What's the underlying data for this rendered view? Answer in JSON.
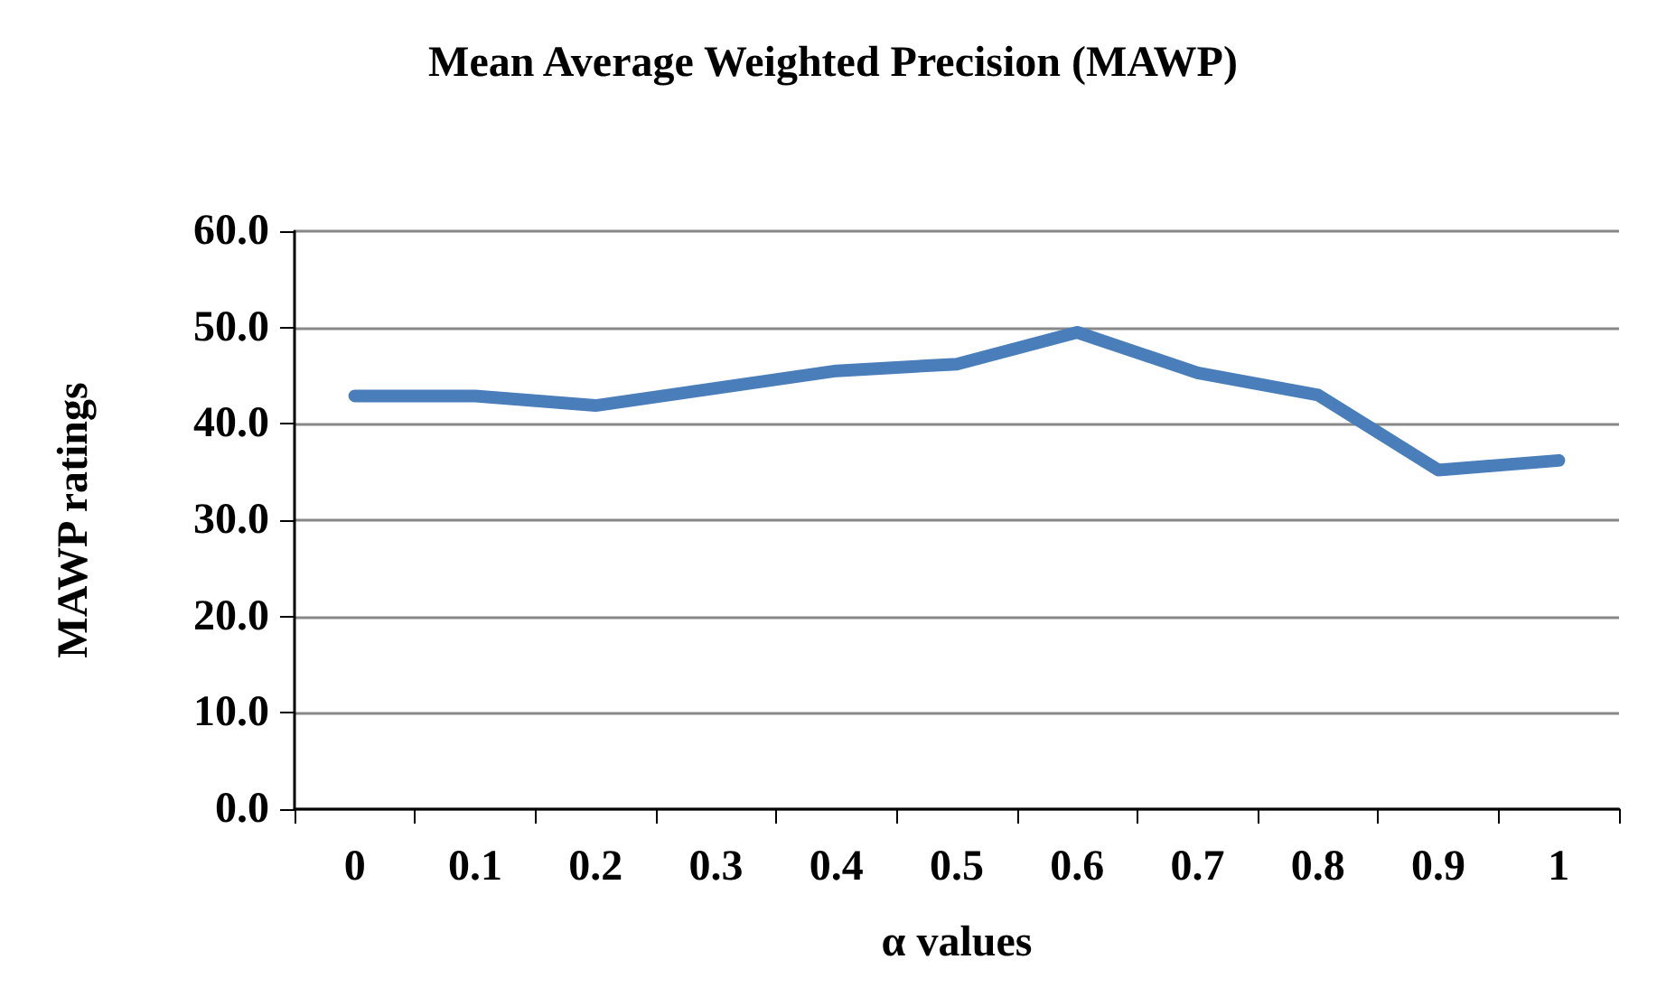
{
  "chart_data": {
    "type": "line",
    "title": "Mean Average Weighted Precision (MAWP)",
    "xlabel": "α values",
    "ylabel": "MAWP ratings",
    "categories": [
      "0",
      "0.1",
      "0.2",
      "0.3",
      "0.4",
      "0.5",
      "0.6",
      "0.7",
      "0.8",
      "0.9",
      "1"
    ],
    "series": [
      {
        "color": "#4a7ebb",
        "values": [
          42.9,
          42.9,
          41.9,
          43.7,
          45.5,
          46.2,
          49.5,
          45.3,
          43.0,
          35.2,
          36.2
        ]
      }
    ],
    "ylim": [
      0,
      60
    ],
    "yticks": [
      {
        "value": 0,
        "label": "0.0"
      },
      {
        "value": 10,
        "label": "10.0"
      },
      {
        "value": 20,
        "label": "20.0"
      },
      {
        "value": 30,
        "label": "30.0"
      },
      {
        "value": 40,
        "label": "40.0"
      },
      {
        "value": 50,
        "label": "50.0"
      },
      {
        "value": 60,
        "label": "60.0"
      }
    ],
    "grid": "y",
    "line_style": "solid"
  }
}
